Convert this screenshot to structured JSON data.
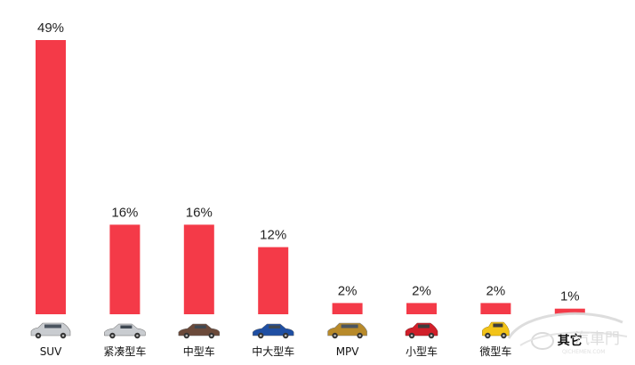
{
  "chart_data": {
    "type": "bar",
    "categories": [
      "SUV",
      "紧凑型车",
      "中型车",
      "中大型车",
      "MPV",
      "小型车",
      "微型车",
      "其它"
    ],
    "values": [
      49,
      16,
      16,
      12,
      2,
      2,
      2,
      1
    ],
    "value_labels": [
      "49%",
      "16%",
      "16%",
      "12%",
      "2%",
      "2%",
      "2%",
      "1%"
    ],
    "category_icons": [
      "silver-suv-icon",
      "silver-sedan-icon",
      "brown-sedan-icon",
      "blue-sedan-icon",
      "gold-mpv-icon",
      "red-hatchback-icon",
      "yellow-minicar-icon",
      ""
    ],
    "ylim": [
      0,
      49
    ],
    "grid": false,
    "legend": "none",
    "bar_color": "#f43a48",
    "title": "",
    "xlabel": "",
    "ylabel": ""
  },
  "watermark": {
    "text": "汽車門",
    "subtext": "QICHEMEN.COM"
  },
  "colors": {
    "bar": "#f43a48",
    "silver_car": "#c9ccd0",
    "brown_car": "#6b4a3a",
    "blue_car": "#1f4fa3",
    "gold_car": "#b88a2a",
    "red_car": "#d11f2a",
    "yellow_car": "#f2c318"
  }
}
